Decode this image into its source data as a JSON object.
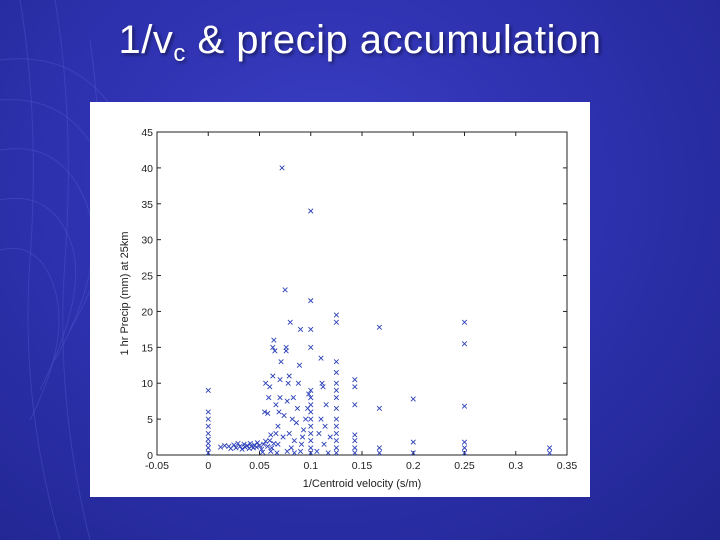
{
  "slide": {
    "title_main": "1/v",
    "title_sub": "c",
    "title_rest": " & precip accumulation"
  },
  "colors": {
    "background": "#2e32b0",
    "marker": "#2b3fb8"
  },
  "chart_data": {
    "type": "scatter",
    "xlabel": "1/Centroid velocity (s/m)",
    "ylabel": "1 hr Precip (mm) at 25km",
    "xlim": [
      -0.05,
      0.35
    ],
    "ylim": [
      0,
      45
    ],
    "xticks": [
      -0.05,
      0,
      0.05,
      0.1,
      0.15,
      0.2,
      0.25,
      0.3,
      0.35
    ],
    "xtick_labels": [
      "-0.05",
      "0",
      "0.05",
      "0.1",
      "0.15",
      "0.2",
      "0.25",
      "0.3",
      "0.35"
    ],
    "yticks": [
      0,
      5,
      10,
      15,
      20,
      25,
      30,
      35,
      40,
      45
    ],
    "ytick_labels": [
      "0",
      "5",
      "10",
      "15",
      "20",
      "25",
      "30",
      "35",
      "40",
      "45"
    ],
    "marker": "x",
    "grid": false,
    "series": [
      {
        "points": [
          [
            0,
            0.3
          ],
          [
            0,
            1
          ],
          [
            0,
            1.6
          ],
          [
            0,
            2.2
          ],
          [
            0,
            3
          ],
          [
            0,
            4
          ],
          [
            0,
            5
          ],
          [
            0,
            6
          ],
          [
            0,
            9
          ],
          [
            0.012,
            1.1
          ],
          [
            0.016,
            1.3
          ],
          [
            0.02,
            1.2
          ],
          [
            0.022,
            0.9
          ],
          [
            0.025,
            1.4
          ],
          [
            0.027,
            1.0
          ],
          [
            0.029,
            1.6
          ],
          [
            0.031,
            1.2
          ],
          [
            0.033,
            0.8
          ],
          [
            0.035,
            1.5
          ],
          [
            0.036,
            1.1
          ],
          [
            0.038,
            1.3
          ],
          [
            0.04,
            0.9
          ],
          [
            0.041,
            1.6
          ],
          [
            0.042,
            1.2
          ],
          [
            0.044,
            1.0
          ],
          [
            0.045,
            1.4
          ],
          [
            0.047,
            1.1
          ],
          [
            0.048,
            1.7
          ],
          [
            0.05,
            1.3
          ],
          [
            0.052,
            0.8
          ],
          [
            0.054,
            1.5
          ],
          [
            0.056,
            1.9
          ],
          [
            0.058,
            1.2
          ],
          [
            0.06,
            2.0
          ],
          [
            0.062,
            1.0
          ],
          [
            0.064,
            1.6
          ],
          [
            0.053,
            0.4
          ],
          [
            0.055,
            6
          ],
          [
            0.056,
            10
          ],
          [
            0.058,
            5.8
          ],
          [
            0.059,
            8
          ],
          [
            0.06,
            9.5
          ],
          [
            0.061,
            0.5
          ],
          [
            0.061,
            2.8
          ],
          [
            0.063,
            11
          ],
          [
            0.063,
            15
          ],
          [
            0.064,
            16
          ],
          [
            0.065,
            14.5
          ],
          [
            0.066,
            3
          ],
          [
            0.066,
            7
          ],
          [
            0.067,
            0.3
          ],
          [
            0.068,
            1.5
          ],
          [
            0.068,
            4
          ],
          [
            0.069,
            6
          ],
          [
            0.07,
            8
          ],
          [
            0.07,
            10.5
          ],
          [
            0.071,
            13
          ],
          [
            0.072,
            40
          ],
          [
            0.073,
            2.5
          ],
          [
            0.074,
            5.5
          ],
          [
            0.075,
            23
          ],
          [
            0.076,
            15
          ],
          [
            0.076,
            14.5
          ],
          [
            0.077,
            0.5
          ],
          [
            0.077,
            7.5
          ],
          [
            0.078,
            10
          ],
          [
            0.079,
            3
          ],
          [
            0.079,
            11
          ],
          [
            0.08,
            18.5
          ],
          [
            0.081,
            1
          ],
          [
            0.082,
            5
          ],
          [
            0.083,
            8
          ],
          [
            0.084,
            0.3
          ],
          [
            0.084,
            2
          ],
          [
            0.086,
            4.5
          ],
          [
            0.087,
            6.5
          ],
          [
            0.088,
            10
          ],
          [
            0.089,
            12.5
          ],
          [
            0.09,
            17.5
          ],
          [
            0.09,
            0.5
          ],
          [
            0.091,
            1.5
          ],
          [
            0.092,
            2.5
          ],
          [
            0.093,
            3.5
          ],
          [
            0.095,
            5
          ],
          [
            0.097,
            6.5
          ],
          [
            0.098,
            8.5
          ],
          [
            0.1,
            0.3
          ],
          [
            0.1,
            1
          ],
          [
            0.1,
            2
          ],
          [
            0.1,
            3
          ],
          [
            0.1,
            4
          ],
          [
            0.1,
            5
          ],
          [
            0.1,
            6
          ],
          [
            0.1,
            7
          ],
          [
            0.1,
            8
          ],
          [
            0.1,
            9
          ],
          [
            0.1,
            15
          ],
          [
            0.1,
            17.5
          ],
          [
            0.1,
            21.5
          ],
          [
            0.1,
            34
          ],
          [
            0.106,
            0.5
          ],
          [
            0.108,
            3
          ],
          [
            0.11,
            5
          ],
          [
            0.11,
            13.5
          ],
          [
            0.111,
            10
          ],
          [
            0.112,
            9.5
          ],
          [
            0.113,
            1.5
          ],
          [
            0.114,
            4
          ],
          [
            0.115,
            7
          ],
          [
            0.117,
            0.3
          ],
          [
            0.119,
            2.5
          ],
          [
            0.125,
            0.3
          ],
          [
            0.125,
            1
          ],
          [
            0.125,
            2
          ],
          [
            0.125,
            3
          ],
          [
            0.125,
            4
          ],
          [
            0.125,
            5
          ],
          [
            0.125,
            6.5
          ],
          [
            0.125,
            8
          ],
          [
            0.125,
            9
          ],
          [
            0.125,
            10
          ],
          [
            0.125,
            11.5
          ],
          [
            0.125,
            13
          ],
          [
            0.125,
            18.5
          ],
          [
            0.125,
            19.5
          ],
          [
            0.143,
            0.3
          ],
          [
            0.143,
            1
          ],
          [
            0.143,
            2
          ],
          [
            0.143,
            2.8
          ],
          [
            0.143,
            7
          ],
          [
            0.143,
            9.5
          ],
          [
            0.143,
            10.5
          ],
          [
            0.167,
            0.3
          ],
          [
            0.167,
            1
          ],
          [
            0.167,
            6.5
          ],
          [
            0.167,
            17.8
          ],
          [
            0.2,
            0.3
          ],
          [
            0.2,
            1.8
          ],
          [
            0.2,
            7.8
          ],
          [
            0.25,
            0.3
          ],
          [
            0.25,
            1
          ],
          [
            0.25,
            1.8
          ],
          [
            0.25,
            6.8
          ],
          [
            0.25,
            15.5
          ],
          [
            0.25,
            18.5
          ],
          [
            0.333,
            0.3
          ],
          [
            0.333,
            1
          ]
        ]
      }
    ]
  }
}
